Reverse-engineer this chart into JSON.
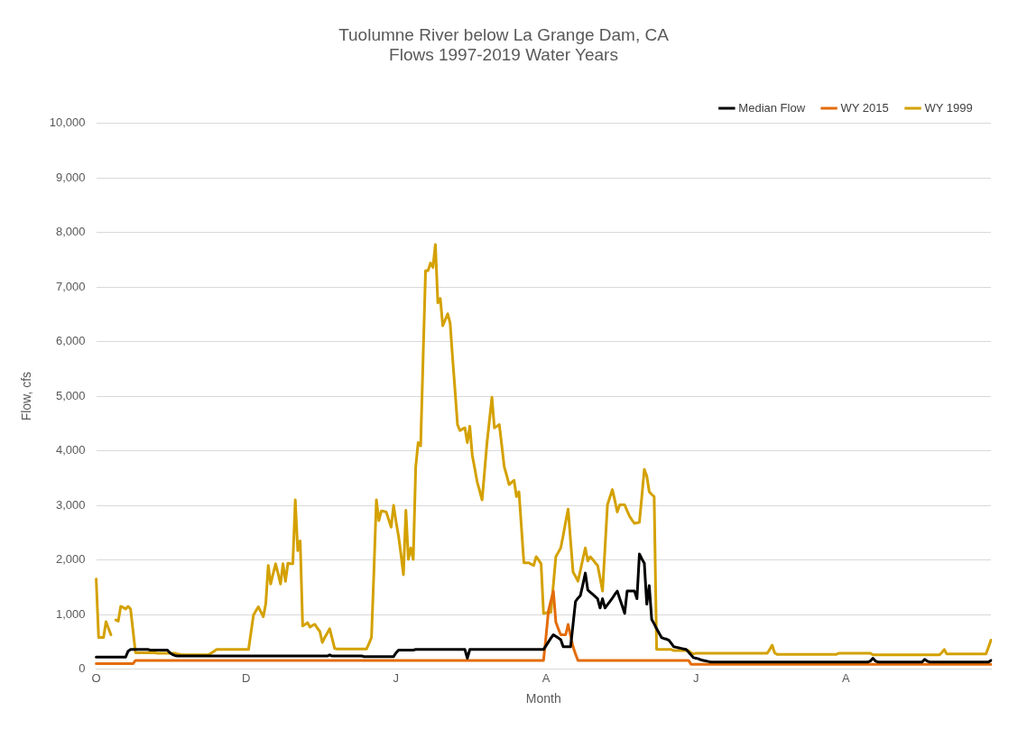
{
  "chart_data": {
    "type": "line",
    "title": "Tuolumne River below La Grange Dam, CA\nFlows 1997-2019 Water Years",
    "xlabel": "Month",
    "ylabel": "Flow, cfs",
    "categories": [
      "O",
      null,
      null,
      null,
      null,
      null,
      null,
      null,
      null,
      null,
      null,
      null,
      null,
      null,
      null,
      null,
      null,
      null,
      null,
      null,
      null,
      null,
      null,
      null,
      null,
      null,
      null,
      null,
      null,
      null,
      null,
      null,
      null,
      null,
      null,
      null,
      null,
      null,
      null,
      null,
      null,
      null,
      null,
      null,
      null,
      null,
      null,
      null,
      null,
      null,
      null,
      null,
      null,
      null,
      null,
      null,
      null,
      null,
      null,
      null,
      null,
      "D",
      null,
      null,
      null,
      null,
      null,
      null,
      null,
      null,
      null,
      null,
      null,
      null,
      null,
      null,
      null,
      null,
      null,
      null,
      null,
      null,
      null,
      null,
      null,
      null,
      null,
      null,
      null,
      null,
      null,
      null,
      null,
      null,
      null,
      null,
      null,
      null,
      null,
      null,
      null,
      null,
      null,
      null,
      null,
      null,
      null,
      null,
      null,
      null,
      null,
      null,
      null,
      null,
      null,
      null,
      null,
      null,
      null,
      null,
      null,
      null,
      "J",
      null,
      null,
      null,
      null,
      null,
      null,
      null,
      null,
      null,
      null,
      null,
      null,
      null,
      null,
      null,
      null,
      null,
      null,
      null,
      null,
      null,
      null,
      null,
      null,
      null,
      null,
      null,
      null,
      null,
      null,
      null,
      null,
      null,
      null,
      null,
      null,
      null,
      null,
      null,
      null,
      null,
      null,
      null,
      null,
      null,
      null,
      null,
      null,
      null,
      null,
      null,
      null,
      null,
      null,
      null,
      null,
      null,
      null,
      null,
      null,
      "A",
      null,
      null,
      null,
      null,
      null,
      null,
      null,
      null,
      null,
      null,
      null,
      null,
      null,
      null,
      null,
      null,
      null,
      null,
      null,
      null,
      null,
      null,
      null,
      null,
      null,
      null,
      null,
      null,
      null,
      null,
      null,
      null,
      null,
      null,
      null,
      null,
      null,
      null,
      null,
      null,
      null,
      null,
      null,
      null,
      null,
      null,
      null,
      null,
      null,
      null,
      null,
      null,
      null,
      null,
      null,
      null,
      null,
      null,
      null,
      null,
      "J",
      null,
      null,
      null,
      null,
      null,
      null,
      null,
      null,
      null,
      null,
      null,
      null,
      null,
      null,
      null,
      null,
      null,
      null,
      null,
      null,
      null,
      null,
      null,
      null,
      null,
      null,
      null,
      null,
      null,
      null,
      null,
      null,
      null,
      null,
      null,
      null,
      null,
      null,
      null,
      null,
      null,
      null,
      null,
      null,
      null,
      null,
      null,
      null,
      null,
      null,
      null,
      null,
      null,
      null,
      null,
      null,
      null,
      null,
      null,
      null,
      "A",
      null,
      null,
      null,
      null,
      null,
      null,
      null,
      null,
      null,
      null,
      null,
      null,
      null,
      null,
      null,
      null,
      null,
      null,
      null,
      null,
      null,
      null,
      null,
      null,
      null,
      null,
      null,
      null,
      null,
      null,
      null,
      null,
      null,
      null,
      null,
      null,
      null,
      null,
      null,
      null,
      null,
      null,
      null,
      null,
      null,
      null,
      null,
      null,
      null,
      null,
      null,
      null,
      null,
      null,
      null,
      null,
      null,
      null,
      null
    ],
    "ylim": [
      0,
      10000
    ],
    "yticks": [
      {
        "value": 0,
        "label": "0"
      },
      {
        "value": 1000,
        "label": "1,000"
      },
      {
        "value": 2000,
        "label": "2,000"
      },
      {
        "value": 3000,
        "label": "3,000"
      },
      {
        "value": 4000,
        "label": "4,000"
      },
      {
        "value": 5000,
        "label": "5,000"
      },
      {
        "value": 6000,
        "label": "6,000"
      },
      {
        "value": 7000,
        "label": "7,000"
      },
      {
        "value": 8000,
        "label": "8,000"
      },
      {
        "value": 9000,
        "label": "9,000"
      },
      {
        "value": 10000,
        "label": "10,000"
      }
    ],
    "grid": "y",
    "legend": "top right",
    "marker": "none",
    "line_style": "solid",
    "series": [
      {
        "name": "Median Flow",
        "color": "#000000",
        "values": [
          220,
          220,
          220,
          220,
          220,
          220,
          220,
          220,
          220,
          220,
          220,
          220,
          220,
          330,
          360,
          360,
          360,
          360,
          360,
          360,
          360,
          360,
          350,
          350,
          350,
          350,
          350,
          350,
          350,
          350,
          300,
          270,
          250,
          240,
          240,
          240,
          240,
          240,
          240,
          240,
          240,
          240,
          240,
          240,
          240,
          240,
          240,
          240,
          240,
          240,
          240,
          240,
          240,
          240,
          240,
          240,
          240,
          240,
          240,
          240,
          240,
          240,
          240,
          240,
          240,
          240,
          240,
          240,
          240,
          240,
          240,
          240,
          240,
          240,
          240,
          240,
          240,
          240,
          240,
          240,
          240,
          240,
          240,
          240,
          240,
          240,
          240,
          240,
          240,
          240,
          240,
          240,
          240,
          240,
          240,
          260,
          240,
          240,
          240,
          240,
          240,
          240,
          240,
          240,
          240,
          240,
          240,
          240,
          240,
          230,
          230,
          230,
          230,
          230,
          230,
          230,
          230,
          230,
          230,
          230,
          230,
          230,
          300,
          350,
          350,
          350,
          350,
          350,
          350,
          350,
          360,
          360,
          360,
          360,
          360,
          360,
          360,
          360,
          360,
          360,
          360,
          360,
          360,
          360,
          360,
          360,
          360,
          360,
          360,
          360,
          360,
          200,
          360,
          360,
          360,
          360,
          360,
          360,
          360,
          360,
          360,
          360,
          360,
          360,
          360,
          360,
          360,
          360,
          360,
          360,
          360,
          360,
          360,
          360,
          360,
          360,
          360,
          360,
          360,
          360,
          360,
          360,
          360,
          430,
          500,
          570,
          630,
          600,
          570,
          540,
          410,
          410,
          410,
          410,
          820,
          1240,
          1300,
          1350,
          1550,
          1760,
          1450,
          1410,
          1370,
          1330,
          1290,
          1120,
          1290,
          1120,
          1180,
          1240,
          1300,
          1370,
          1430,
          1290,
          1160,
          1020,
          1430,
          1430,
          1430,
          1430,
          1290,
          2110,
          2020,
          1940,
          1190,
          1530,
          910,
          830,
          740,
          660,
          580,
          560,
          550,
          530,
          470,
          410,
          400,
          390,
          380,
          370,
          360,
          310,
          260,
          210,
          200,
          190,
          170,
          160,
          150,
          140,
          130,
          130,
          130,
          130,
          130,
          130,
          130,
          130,
          130,
          130,
          130,
          130,
          130,
          130,
          130,
          130,
          130,
          130,
          130,
          130,
          130,
          130,
          130,
          130,
          130,
          130,
          130,
          130,
          130,
          130,
          130,
          130,
          130,
          130,
          130,
          130,
          130,
          130,
          130,
          130,
          130,
          130,
          130,
          130,
          130,
          130,
          130,
          130,
          130,
          130,
          130,
          130,
          130,
          130,
          130,
          130,
          130,
          130,
          130,
          130,
          130,
          130,
          130,
          130,
          130,
          150,
          200,
          150,
          130,
          130,
          130,
          130,
          130,
          130,
          130,
          130,
          130,
          130,
          130,
          130,
          130,
          130,
          130,
          130,
          130,
          130,
          130,
          180,
          150,
          130,
          130,
          130,
          130,
          130,
          130,
          130,
          130,
          130,
          130,
          130,
          130,
          130,
          130,
          130,
          130,
          130,
          130,
          130,
          130,
          130,
          130,
          130,
          130,
          130,
          160
        ]
      },
      {
        "name": "WY 2015",
        "color": "#e36c0a",
        "values": [
          100,
          100,
          100,
          100,
          100,
          100,
          100,
          100,
          100,
          100,
          100,
          100,
          100,
          100,
          100,
          100,
          160,
          160,
          160,
          160,
          160,
          160,
          160,
          160,
          160,
          160,
          160,
          160,
          160,
          160,
          160,
          160,
          160,
          160,
          160,
          160,
          160,
          160,
          160,
          160,
          160,
          160,
          160,
          160,
          160,
          160,
          160,
          160,
          160,
          160,
          160,
          160,
          160,
          160,
          160,
          160,
          160,
          160,
          160,
          160,
          160,
          160,
          160,
          160,
          160,
          160,
          160,
          160,
          160,
          160,
          160,
          160,
          160,
          160,
          160,
          160,
          160,
          160,
          160,
          160,
          160,
          160,
          160,
          160,
          160,
          160,
          160,
          160,
          160,
          160,
          160,
          160,
          160,
          160,
          160,
          160,
          160,
          160,
          160,
          160,
          160,
          160,
          160,
          160,
          160,
          160,
          160,
          160,
          160,
          160,
          160,
          160,
          160,
          160,
          160,
          160,
          160,
          160,
          160,
          160,
          160,
          160,
          160,
          160,
          160,
          160,
          160,
          160,
          160,
          160,
          160,
          160,
          160,
          160,
          160,
          160,
          160,
          160,
          160,
          160,
          160,
          160,
          160,
          160,
          160,
          160,
          160,
          160,
          160,
          160,
          160,
          160,
          160,
          160,
          160,
          160,
          160,
          160,
          160,
          160,
          160,
          160,
          160,
          160,
          160,
          160,
          160,
          160,
          160,
          160,
          160,
          160,
          160,
          160,
          160,
          160,
          160,
          160,
          160,
          160,
          160,
          160,
          160,
          600,
          1070,
          1250,
          1430,
          860,
          740,
          630,
          630,
          630,
          820,
          610,
          410,
          280,
          160,
          160,
          160,
          160,
          160,
          160,
          160,
          160,
          160,
          160,
          160,
          160,
          160,
          160,
          160,
          160,
          160,
          160,
          160,
          160,
          160,
          160,
          160,
          160,
          160,
          160,
          160,
          160,
          160,
          160,
          160,
          160,
          160,
          160,
          160,
          160,
          160,
          160,
          160,
          160,
          160,
          160,
          160,
          160,
          160,
          160,
          90,
          90,
          90,
          90,
          90,
          90,
          90,
          90,
          90,
          90,
          90,
          90,
          90,
          90,
          90,
          90,
          90,
          90,
          90,
          90,
          90,
          90,
          90,
          90,
          90,
          90,
          90,
          90,
          90,
          90,
          90,
          90,
          90,
          90,
          90,
          90,
          90,
          90,
          90,
          90,
          90,
          90,
          90,
          90,
          90,
          90,
          90,
          90,
          90,
          90,
          90,
          90,
          90,
          90,
          90,
          90,
          90,
          90,
          90,
          90,
          90,
          90,
          90,
          90,
          90,
          90,
          90,
          90,
          90,
          90,
          90,
          90,
          90,
          90,
          90,
          90,
          90,
          90,
          90,
          90,
          90,
          90,
          90,
          90,
          90,
          90,
          90,
          90,
          90,
          90,
          90,
          90,
          90,
          90,
          90,
          90,
          90,
          90,
          90,
          90,
          90,
          90,
          90,
          90,
          90,
          90,
          90,
          90,
          90,
          90,
          90,
          90,
          90,
          90,
          90,
          90,
          90,
          90,
          90,
          90,
          90,
          90,
          90
        ]
      },
      {
        "name": "WY 1999",
        "color": "#d4a100",
        "values": [
          1650,
          580,
          580,
          580,
          870,
          750,
          630,
          null,
          900,
          880,
          1150,
          1130,
          1100,
          1150,
          1100,
          700,
          300,
          300,
          300,
          300,
          300,
          300,
          300,
          300,
          300,
          290,
          290,
          290,
          290,
          290,
          290,
          290,
          290,
          280,
          270,
          260,
          260,
          260,
          260,
          260,
          260,
          260,
          260,
          260,
          260,
          260,
          270,
          300,
          330,
          360,
          360,
          360,
          360,
          360,
          360,
          360,
          360,
          360,
          360,
          360,
          360,
          360,
          360,
          680,
          990,
          1070,
          1140,
          1050,
          960,
          1200,
          1900,
          1560,
          1750,
          1930,
          1750,
          1560,
          1930,
          1610,
          1940,
          1930,
          1930,
          3100,
          2170,
          2350,
          790,
          820,
          850,
          770,
          800,
          820,
          750,
          690,
          490,
          580,
          660,
          740,
          560,
          380,
          370,
          370,
          370,
          370,
          370,
          370,
          370,
          370,
          370,
          370,
          370,
          370,
          370,
          470,
          580,
          1800,
          3100,
          2720,
          2900,
          2890,
          2880,
          2740,
          2600,
          3000,
          2700,
          2440,
          2100,
          1730,
          2910,
          2010,
          2220,
          2010,
          3710,
          4150,
          4090,
          5700,
          7300,
          7300,
          7440,
          7360,
          7780,
          6710,
          6790,
          6290,
          6400,
          6510,
          6340,
          5700,
          5100,
          4480,
          4370,
          4400,
          4420,
          4150,
          4450,
          3920,
          3680,
          3430,
          3270,
          3100,
          3620,
          4150,
          4560,
          4980,
          4420,
          4450,
          4480,
          4100,
          3710,
          3550,
          3380,
          3420,
          3460,
          3160,
          3250,
          2600,
          1950,
          1950,
          1950,
          1920,
          1900,
          2060,
          2000,
          1930,
          1020,
          1030,
          1040,
          1040,
          1550,
          2060,
          2140,
          2220,
          2450,
          2700,
          2930,
          2350,
          1780,
          1700,
          1610,
          1810,
          2020,
          2220,
          1980,
          2060,
          2010,
          1950,
          1900,
          1670,
          1430,
          2220,
          3010,
          3150,
          3290,
          3090,
          2880,
          3010,
          3010,
          3010,
          2900,
          2800,
          2730,
          2670,
          2680,
          2690,
          3170,
          3660,
          3540,
          3250,
          3200,
          3160,
          360,
          360,
          360,
          360,
          360,
          360,
          360,
          340,
          340,
          340,
          340,
          340,
          340,
          340,
          300,
          280,
          290,
          290,
          290,
          290,
          290,
          290,
          290,
          290,
          290,
          290,
          290,
          290,
          290,
          290,
          290,
          290,
          290,
          290,
          290,
          290,
          290,
          290,
          290,
          290,
          290,
          290,
          290,
          290,
          290,
          290,
          360,
          440,
          300,
          270,
          270,
          270,
          270,
          270,
          270,
          270,
          270,
          270,
          270,
          270,
          270,
          270,
          270,
          270,
          270,
          270,
          270,
          270,
          270,
          270,
          270,
          270,
          270,
          270,
          290,
          290,
          290,
          290,
          290,
          290,
          290,
          290,
          290,
          290,
          290,
          290,
          290,
          290,
          260,
          260,
          260,
          260,
          260,
          260,
          260,
          260,
          260,
          260,
          260,
          260,
          260,
          260,
          260,
          260,
          260,
          260,
          260,
          260,
          260,
          260,
          260,
          260,
          260,
          260,
          260,
          260,
          300,
          360,
          280,
          280,
          280,
          280,
          280,
          280,
          280,
          280,
          280,
          280,
          280,
          280,
          280,
          280,
          280,
          280,
          280,
          400,
          530
        ]
      }
    ]
  }
}
